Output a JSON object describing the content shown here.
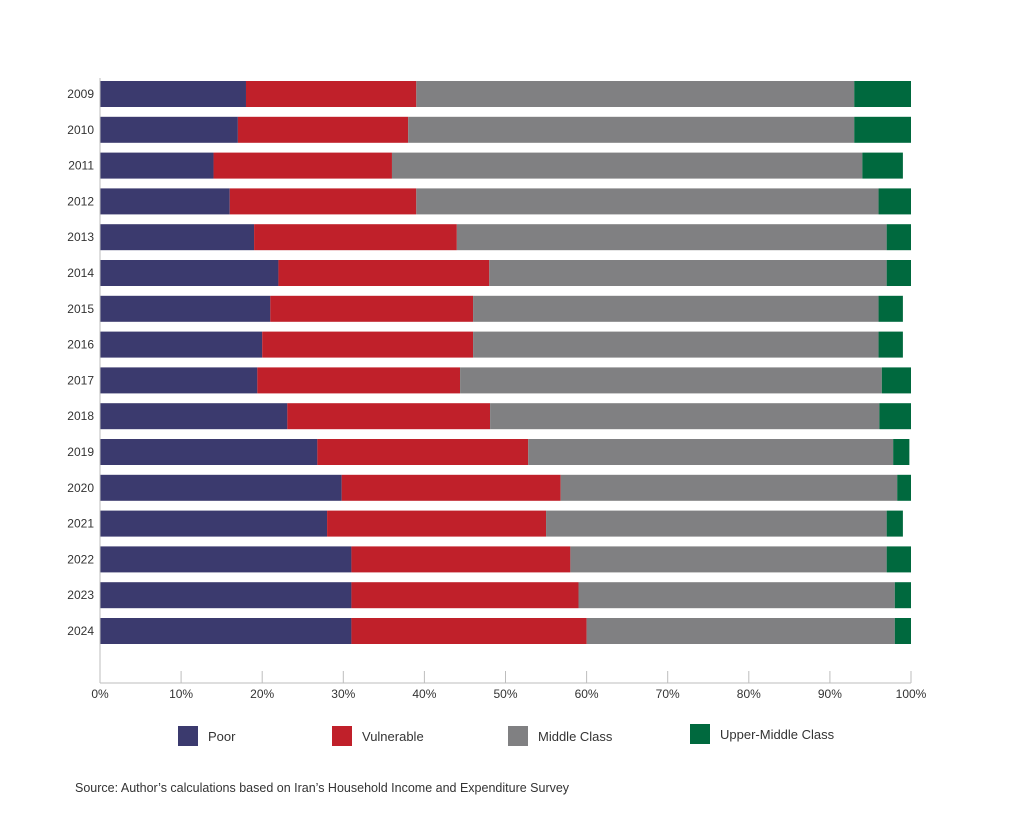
{
  "chart_data": {
    "type": "bar",
    "orientation": "horizontal",
    "stacked": true,
    "categories": [
      "2009",
      "2010",
      "2011",
      "2012",
      "2013",
      "2014",
      "2015",
      "2016",
      "2017",
      "2018",
      "2019",
      "2020",
      "2021",
      "2022",
      "2023",
      "2024"
    ],
    "series": [
      {
        "name": "Poor",
        "color": "#3b3a6e",
        "values": [
          18,
          17,
          14,
          16,
          19,
          22,
          21,
          20,
          19.4,
          23.1,
          26.8,
          29.8,
          28,
          31,
          31,
          31
        ]
      },
      {
        "name": "Vulnerable",
        "color": "#c0202a",
        "values": [
          21,
          21,
          22,
          23,
          25,
          26,
          25,
          26,
          25,
          25,
          26,
          27,
          27,
          27,
          28,
          29
        ]
      },
      {
        "name": "Middle Class",
        "color": "#808082",
        "values": [
          54,
          55,
          58,
          57,
          53,
          49,
          50,
          50,
          52,
          48,
          45,
          41.5,
          42,
          39,
          39,
          38
        ]
      },
      {
        "name": "Upper-Middle Class",
        "color": "#00693e",
        "values": [
          7,
          7,
          5,
          4,
          3,
          3,
          3,
          3,
          3.6,
          3.9,
          2,
          1.7,
          2,
          3,
          2,
          2
        ]
      }
    ],
    "xlim": [
      0,
      100
    ],
    "x_ticks": [
      "0%",
      "10%",
      "20%",
      "30%",
      "40%",
      "50%",
      "60%",
      "70%",
      "80%",
      "90%",
      "100%"
    ],
    "legend_position": "bottom",
    "grid": false
  },
  "source_note": "Source: Author’s calculations based on Iran’s Household Income and Expenditure Survey"
}
